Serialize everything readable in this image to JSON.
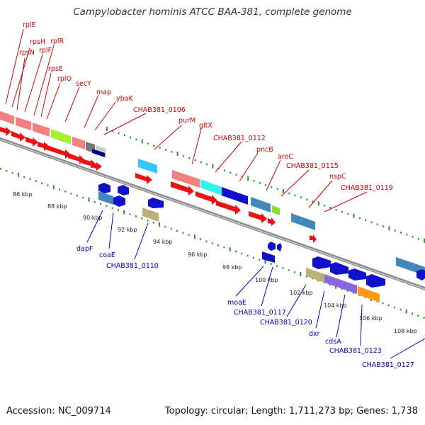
{
  "title": "Campylobacter hominis ATCC BAA-381, complete genome",
  "footer": {
    "accession": "Accession: NC_009714",
    "summary": "Topology: circular; Length: 1,711,273 bp; Genes: 1,738"
  },
  "colors": {
    "backbone": "#8a8a8a",
    "forward_label": "#cc0000",
    "reverse_label": "#0000bb",
    "tick": "#2f8f2f",
    "kbp_label": "#222222",
    "red_gene": "#ee1111",
    "blue_gene": "#1111cc"
  },
  "kbp_labels": [
    "86 kbp",
    "88 kbp",
    "90 kbp",
    "92 kbp",
    "94 kbp",
    "96 kbp",
    "98 kbp",
    "100 kbp",
    "102 kbp",
    "104 kbp",
    "106 kbp",
    "108 kbp"
  ],
  "forward_labels": [
    "rplE",
    "rpsH",
    "rpsN",
    "rplF",
    "rplR",
    "rpsE",
    "rplO",
    "secY",
    "map",
    "ybaK",
    "CHAB381_0106",
    "purM",
    "gltX",
    "CHAB381_0112",
    "pncB",
    "aroC",
    "CHAB381_0115",
    "nspC",
    "CHAB381_0119"
  ],
  "reverse_labels": [
    "dapF",
    "coaE",
    "CHAB381_0110",
    "moaE",
    "CHAB381_0117",
    "CHAB381_0120",
    "dxr",
    "cdsA",
    "CHAB381_0123",
    "CHAB381_0127"
  ]
}
